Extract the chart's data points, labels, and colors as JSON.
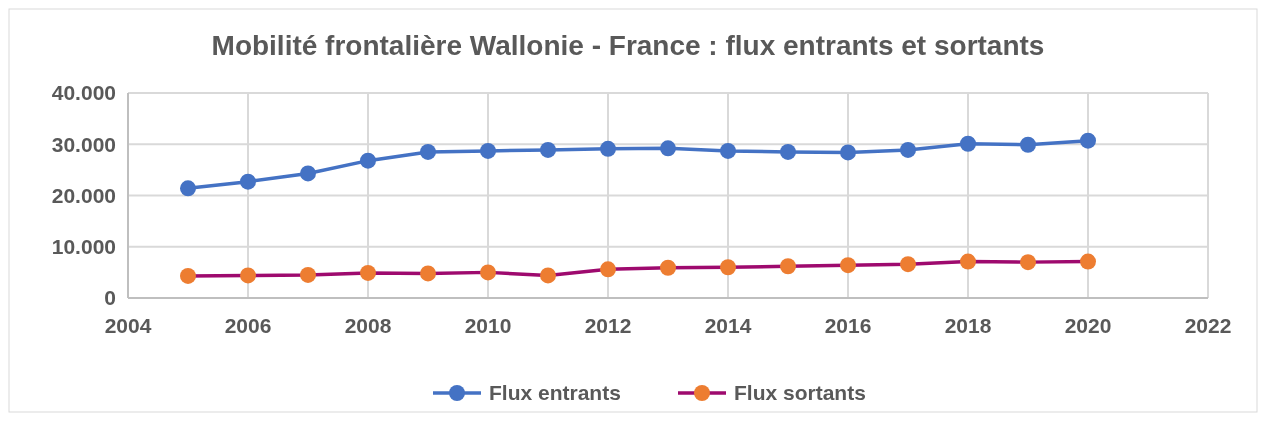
{
  "chart_data": {
    "type": "line",
    "title": "Mobilité frontalière Wallonie - France : flux entrants et sortants",
    "x": [
      2005,
      2006,
      2007,
      2008,
      2009,
      2010,
      2011,
      2012,
      2013,
      2014,
      2015,
      2016,
      2017,
      2018,
      2019,
      2020
    ],
    "series": [
      {
        "name": "Flux entrants",
        "color": "#4472c4",
        "colors": [
          "#4472c4",
          "#4472c4",
          "#4472c4",
          "#4472c4",
          "#4472c4",
          "#4472c4",
          "#4472c4",
          "#4472c4",
          "#4472c4",
          "#4472c4",
          "#4472c4",
          "#4472c4",
          "#4472c4",
          "#4472c4",
          "#4472c4",
          "#4472c4"
        ],
        "values": [
          21400,
          22700,
          24300,
          26800,
          28500,
          28700,
          28900,
          29100,
          29200,
          28700,
          28500,
          28400,
          28900,
          30100,
          29900,
          30700
        ]
      },
      {
        "name": "Flux sortants",
        "color": "#9e0a6e",
        "colors": [
          "#ed7d31",
          "#ed7d31",
          "#ed7d31",
          "#ed7d31",
          "#ed7d31",
          "#ed7d31",
          "#ed7d31",
          "#ed7d31",
          "#ed7d31",
          "#ed7d31",
          "#ed7d31",
          "#ed7d31",
          "#ed7d31",
          "#ed7d31",
          "#ed7d31",
          "#ed7d31"
        ],
        "values": [
          4300,
          4400,
          4500,
          4900,
          4800,
          5000,
          4400,
          5600,
          5900,
          6000,
          6200,
          6400,
          6600,
          7100,
          7000,
          7100
        ]
      }
    ],
    "xlim": [
      2004,
      2022
    ],
    "xticks": [
      2004,
      2006,
      2008,
      2010,
      2012,
      2014,
      2016,
      2018,
      2020,
      2022
    ],
    "ylim": [
      0,
      40000
    ],
    "yticks": [
      {
        "value": 0,
        "label": "0"
      },
      {
        "value": 10000,
        "label": "10.000"
      },
      {
        "value": 20000,
        "label": "20.000"
      },
      {
        "value": 30000,
        "label": "30.000"
      },
      {
        "value": 40000,
        "label": "40.000"
      }
    ],
    "grid": true,
    "legend": "bottom",
    "marker": "circle",
    "line_style": "solid"
  }
}
